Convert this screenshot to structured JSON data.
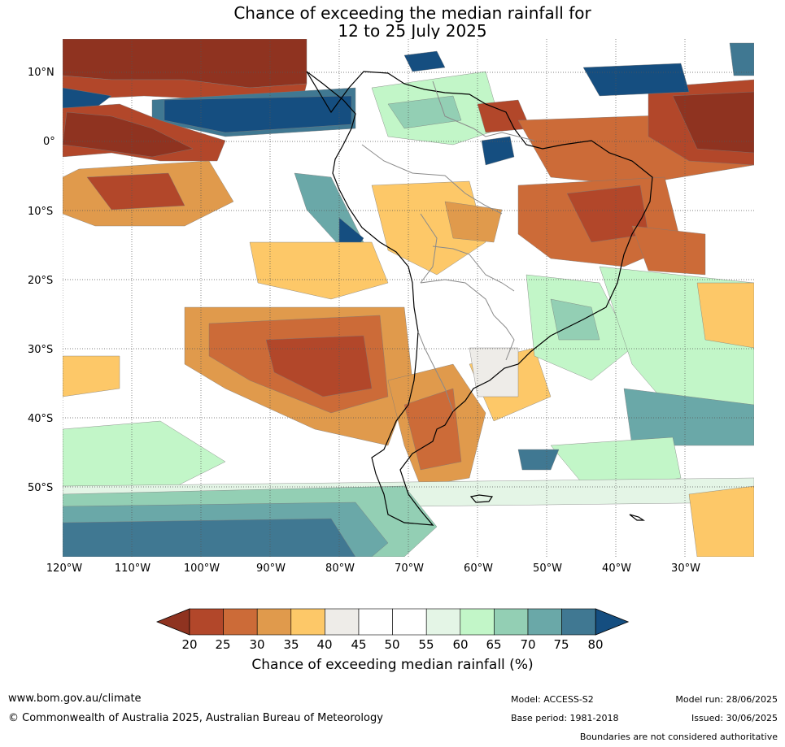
{
  "title": {
    "line1": "Chance of exceeding the median rainfall for",
    "line2": "12 to 25 July 2025"
  },
  "map": {
    "lat_labels": [
      "10°N",
      "0°",
      "10°S",
      "20°S",
      "30°S",
      "40°S",
      "50°S"
    ],
    "lon_labels": [
      "120°W",
      "110°W",
      "100°W",
      "90°W",
      "80°W",
      "70°W",
      "60°W",
      "50°W",
      "40°W",
      "30°W"
    ],
    "colors": {
      "c20": "#8f3320",
      "c25": "#b2472a",
      "c30": "#cc6b38",
      "c35": "#e09a4c",
      "c40": "#fdc868",
      "c45": "#eeece8",
      "c55": "#ffffff",
      "c60": "#e4f5e6",
      "c65": "#c2f6c8",
      "c70": "#93cfb4",
      "c75": "#6aa8a8",
      "c80": "#407892",
      "c85": "#154e80",
      "coast": "#000000",
      "border": "#8a8a8a"
    }
  },
  "colorbar": {
    "ticks": [
      "20",
      "25",
      "30",
      "35",
      "40",
      "45",
      "50",
      "55",
      "60",
      "65",
      "70",
      "75",
      "80"
    ],
    "colors": [
      "#8f3320",
      "#b2472a",
      "#cc6b38",
      "#e09a4c",
      "#fdc868",
      "#eeece8",
      "#ffffff",
      "#ffffff",
      "#e4f5e6",
      "#c2f6c8",
      "#93cfb4",
      "#6aa8a8",
      "#407892",
      "#154e80"
    ],
    "label": "Chance of exceeding median rainfall (%)"
  },
  "footer": {
    "website": "www.bom.gov.au/climate",
    "copyright": "© Commonwealth of Australia 2025, Australian Bureau of Meteorology",
    "model": "Model: ACCESS-S2",
    "model_run": "Model run: 28/06/2025",
    "base_period": "Base period: 1981-2018",
    "issued": "Issued: 30/06/2025",
    "disclaimer": "Boundaries are not considered authoritative"
  }
}
